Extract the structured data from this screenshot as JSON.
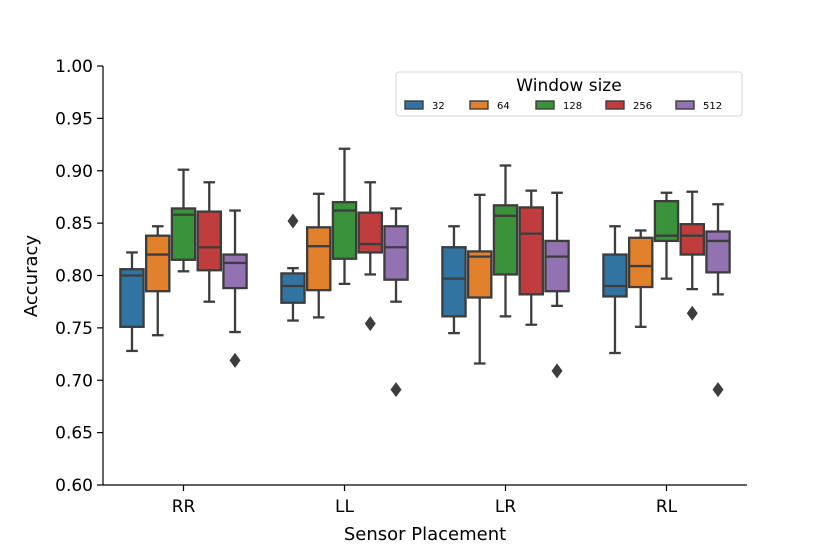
{
  "chart_data": {
    "type": "boxplot",
    "xlabel": "Sensor Placement",
    "ylabel": "Accuracy",
    "ylim": [
      0.6,
      1.0
    ],
    "yticks": [
      0.6,
      0.65,
      0.7,
      0.75,
      0.8,
      0.85,
      0.9,
      0.95,
      1.0
    ],
    "ytick_labels": [
      "0.60",
      "0.65",
      "0.70",
      "0.75",
      "0.80",
      "0.85",
      "0.90",
      "0.95",
      "1.00"
    ],
    "categories": [
      "RR",
      "LL",
      "LR",
      "RL"
    ],
    "legend": {
      "title": "Window size",
      "location": "upper-right"
    },
    "series": [
      {
        "name": "32",
        "color": "#3274a1",
        "boxes": [
          {
            "whisker_low": 0.728,
            "q1": 0.751,
            "median": 0.8,
            "q3": 0.806,
            "whisker_high": 0.822,
            "outliers": []
          },
          {
            "whisker_low": 0.757,
            "q1": 0.774,
            "median": 0.79,
            "q3": 0.802,
            "whisker_high": 0.807,
            "outliers": [
              0.852
            ]
          },
          {
            "whisker_low": 0.745,
            "q1": 0.761,
            "median": 0.797,
            "q3": 0.827,
            "whisker_high": 0.847,
            "outliers": []
          },
          {
            "whisker_low": 0.726,
            "q1": 0.78,
            "median": 0.79,
            "q3": 0.82,
            "whisker_high": 0.847,
            "outliers": []
          }
        ]
      },
      {
        "name": "64",
        "color": "#e1812c",
        "boxes": [
          {
            "whisker_low": 0.743,
            "q1": 0.785,
            "median": 0.82,
            "q3": 0.838,
            "whisker_high": 0.847,
            "outliers": []
          },
          {
            "whisker_low": 0.76,
            "q1": 0.786,
            "median": 0.828,
            "q3": 0.846,
            "whisker_high": 0.878,
            "outliers": []
          },
          {
            "whisker_low": 0.716,
            "q1": 0.779,
            "median": 0.818,
            "q3": 0.823,
            "whisker_high": 0.877,
            "outliers": []
          },
          {
            "whisker_low": 0.751,
            "q1": 0.789,
            "median": 0.809,
            "q3": 0.836,
            "whisker_high": 0.843,
            "outliers": []
          }
        ]
      },
      {
        "name": "128",
        "color": "#3a923a",
        "boxes": [
          {
            "whisker_low": 0.804,
            "q1": 0.815,
            "median": 0.858,
            "q3": 0.864,
            "whisker_high": 0.901,
            "outliers": []
          },
          {
            "whisker_low": 0.792,
            "q1": 0.816,
            "median": 0.862,
            "q3": 0.87,
            "whisker_high": 0.921,
            "outliers": []
          },
          {
            "whisker_low": 0.761,
            "q1": 0.801,
            "median": 0.857,
            "q3": 0.867,
            "whisker_high": 0.905,
            "outliers": []
          },
          {
            "whisker_low": 0.797,
            "q1": 0.833,
            "median": 0.838,
            "q3": 0.871,
            "whisker_high": 0.879,
            "outliers": []
          }
        ]
      },
      {
        "name": "256",
        "color": "#c03d3e",
        "boxes": [
          {
            "whisker_low": 0.775,
            "q1": 0.805,
            "median": 0.827,
            "q3": 0.861,
            "whisker_high": 0.889,
            "outliers": []
          },
          {
            "whisker_low": 0.801,
            "q1": 0.822,
            "median": 0.83,
            "q3": 0.86,
            "whisker_high": 0.889,
            "outliers": [
              0.754
            ]
          },
          {
            "whisker_low": 0.753,
            "q1": 0.782,
            "median": 0.84,
            "q3": 0.865,
            "whisker_high": 0.881,
            "outliers": []
          },
          {
            "whisker_low": 0.787,
            "q1": 0.82,
            "median": 0.838,
            "q3": 0.849,
            "whisker_high": 0.88,
            "outliers": [
              0.764
            ]
          }
        ]
      },
      {
        "name": "512",
        "color": "#9372b2",
        "boxes": [
          {
            "whisker_low": 0.746,
            "q1": 0.788,
            "median": 0.812,
            "q3": 0.82,
            "whisker_high": 0.862,
            "outliers": [
              0.719
            ]
          },
          {
            "whisker_low": 0.775,
            "q1": 0.796,
            "median": 0.827,
            "q3": 0.847,
            "whisker_high": 0.864,
            "outliers": [
              0.691
            ]
          },
          {
            "whisker_low": 0.771,
            "q1": 0.785,
            "median": 0.818,
            "q3": 0.833,
            "whisker_high": 0.879,
            "outliers": [
              0.709
            ]
          },
          {
            "whisker_low": 0.782,
            "q1": 0.803,
            "median": 0.833,
            "q3": 0.842,
            "whisker_high": 0.868,
            "outliers": [
              0.691
            ]
          }
        ]
      }
    ]
  }
}
